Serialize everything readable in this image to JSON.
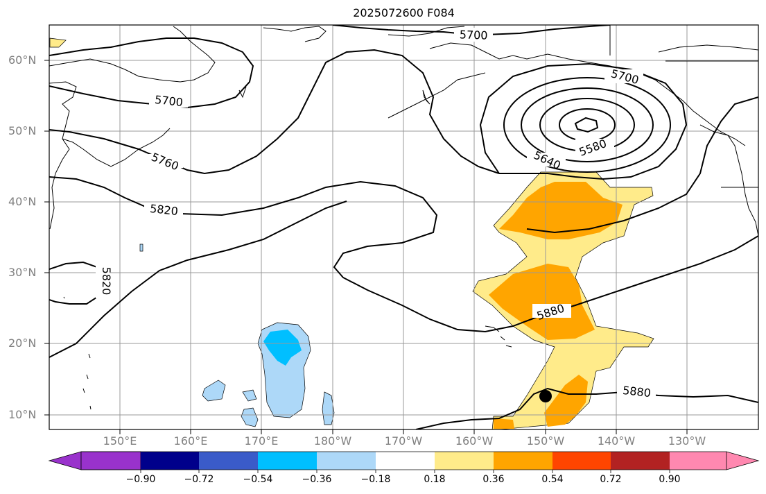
{
  "title": "2025072600 F084",
  "map": {
    "lat_labels": [
      "60°N",
      "50°N",
      "40°N",
      "30°N",
      "20°N",
      "10°N"
    ],
    "lon_labels": [
      "150°E",
      "160°E",
      "170°E",
      "180°W",
      "170°W",
      "160°W",
      "150°W",
      "140°W",
      "130°W"
    ],
    "contour_labels": [
      "5700",
      "5700",
      "5700",
      "5760",
      "5820",
      "5820",
      "5640",
      "5580",
      "5880",
      "5880"
    ],
    "storm_marker": "black-dot"
  },
  "colorbar": {
    "ticks": [
      "−0.90",
      "−0.72",
      "−0.54",
      "−0.36",
      "−0.18",
      "0.18",
      "0.36",
      "0.54",
      "0.72",
      "0.90"
    ],
    "colors": [
      "#9932cc",
      "#00008b",
      "#3a5bc9",
      "#00bfff",
      "#add8f8",
      "#ffffff",
      "#ffeb8a",
      "#ffa500",
      "#ff4500",
      "#b22222",
      "#ff88b0"
    ]
  }
}
